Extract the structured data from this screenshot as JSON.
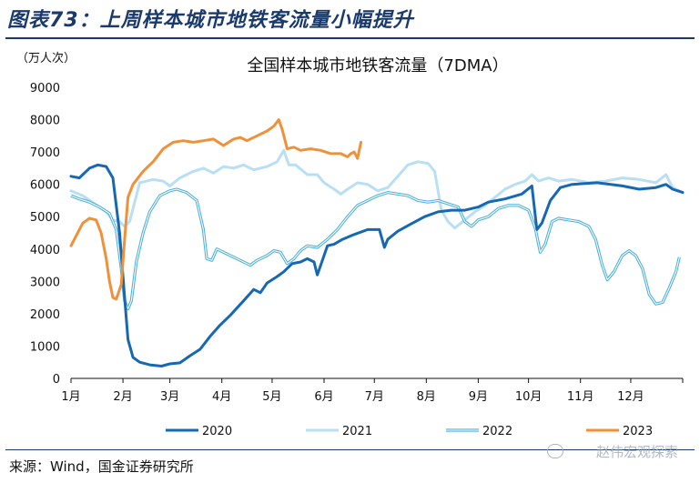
{
  "header": {
    "title": "图表73：上周样本城市地铁客流量小幅提升"
  },
  "footer": {
    "source": "来源：Wind，国金证券研究所",
    "watermark": "赵伟宏观探索"
  },
  "colors": {
    "title": "#1a3a6b",
    "s2020": "#1668b4",
    "s2021": "#b8dff3",
    "s2022": "#4ab0e0",
    "s2023": "#f0913a"
  },
  "chart_data": {
    "type": "line",
    "title": "全国样本城市地铁客流量（7DMA）",
    "ylabel": "（万人次）",
    "xlabel": "",
    "ylim": [
      0,
      9000
    ],
    "yticks": [
      0,
      1000,
      2000,
      3000,
      4000,
      5000,
      6000,
      7000,
      8000,
      9000
    ],
    "x_unit": "day of year",
    "xlim": [
      1,
      366
    ],
    "xtick_labels": [
      "1月",
      "2月",
      "3月",
      "4月",
      "5月",
      "6月",
      "7月",
      "8月",
      "9月",
      "10月",
      "11月",
      "12月"
    ],
    "xtick_days": [
      1,
      32,
      60,
      91,
      121,
      152,
      182,
      213,
      244,
      274,
      305,
      335
    ],
    "legend_position": "bottom",
    "grid": false,
    "series": [
      {
        "name": "2020",
        "style": "solid-thick",
        "color": "#1668b4",
        "points": [
          [
            1,
            6250
          ],
          [
            6,
            6200
          ],
          [
            12,
            6500
          ],
          [
            17,
            6600
          ],
          [
            22,
            6550
          ],
          [
            26,
            6200
          ],
          [
            30,
            4500
          ],
          [
            33,
            2500
          ],
          [
            35,
            1200
          ],
          [
            38,
            650
          ],
          [
            42,
            500
          ],
          [
            48,
            420
          ],
          [
            55,
            380
          ],
          [
            60,
            450
          ],
          [
            66,
            480
          ],
          [
            72,
            700
          ],
          [
            78,
            900
          ],
          [
            84,
            1300
          ],
          [
            90,
            1650
          ],
          [
            96,
            1950
          ],
          [
            104,
            2400
          ],
          [
            110,
            2750
          ],
          [
            114,
            2650
          ],
          [
            118,
            2950
          ],
          [
            124,
            3150
          ],
          [
            128,
            3300
          ],
          [
            133,
            3550
          ],
          [
            138,
            3600
          ],
          [
            142,
            3700
          ],
          [
            146,
            3600
          ],
          [
            148,
            3200
          ],
          [
            150,
            3500
          ],
          [
            154,
            4100
          ],
          [
            158,
            4150
          ],
          [
            163,
            4300
          ],
          [
            170,
            4450
          ],
          [
            178,
            4600
          ],
          [
            185,
            4600
          ],
          [
            188,
            4050
          ],
          [
            190,
            4300
          ],
          [
            196,
            4550
          ],
          [
            203,
            4750
          ],
          [
            212,
            5000
          ],
          [
            220,
            5150
          ],
          [
            228,
            5200
          ],
          [
            236,
            5200
          ],
          [
            244,
            5300
          ],
          [
            250,
            5450
          ],
          [
            260,
            5550
          ],
          [
            270,
            5700
          ],
          [
            276,
            5950
          ],
          [
            279,
            4600
          ],
          [
            282,
            4800
          ],
          [
            287,
            5500
          ],
          [
            293,
            5900
          ],
          [
            300,
            6000
          ],
          [
            315,
            6050
          ],
          [
            330,
            5950
          ],
          [
            340,
            5850
          ],
          [
            350,
            5900
          ],
          [
            356,
            6000
          ],
          [
            360,
            5850
          ],
          [
            366,
            5750
          ]
        ]
      },
      {
        "name": "2021",
        "style": "solid-thick",
        "color": "#b8dff3",
        "points": [
          [
            1,
            5800
          ],
          [
            8,
            5650
          ],
          [
            15,
            5400
          ],
          [
            22,
            5150
          ],
          [
            26,
            4900
          ],
          [
            30,
            4850
          ],
          [
            33,
            4700
          ],
          [
            36,
            4850
          ],
          [
            42,
            6050
          ],
          [
            50,
            6150
          ],
          [
            56,
            6100
          ],
          [
            60,
            5950
          ],
          [
            66,
            6200
          ],
          [
            74,
            6400
          ],
          [
            80,
            6500
          ],
          [
            86,
            6350
          ],
          [
            92,
            6550
          ],
          [
            98,
            6500
          ],
          [
            104,
            6600
          ],
          [
            110,
            6450
          ],
          [
            118,
            6550
          ],
          [
            124,
            6700
          ],
          [
            128,
            7050
          ],
          [
            131,
            6600
          ],
          [
            135,
            6600
          ],
          [
            142,
            6300
          ],
          [
            148,
            6300
          ],
          [
            152,
            6050
          ],
          [
            158,
            5850
          ],
          [
            162,
            5700
          ],
          [
            166,
            5850
          ],
          [
            172,
            6050
          ],
          [
            178,
            6000
          ],
          [
            184,
            5800
          ],
          [
            190,
            5900
          ],
          [
            196,
            6250
          ],
          [
            202,
            6600
          ],
          [
            208,
            6700
          ],
          [
            214,
            6650
          ],
          [
            218,
            6400
          ],
          [
            222,
            5200
          ],
          [
            226,
            4850
          ],
          [
            230,
            4650
          ],
          [
            236,
            4900
          ],
          [
            242,
            5150
          ],
          [
            248,
            5350
          ],
          [
            254,
            5600
          ],
          [
            260,
            5850
          ],
          [
            266,
            6000
          ],
          [
            272,
            6100
          ],
          [
            276,
            6300
          ],
          [
            280,
            6100
          ],
          [
            286,
            6200
          ],
          [
            292,
            6100
          ],
          [
            300,
            6150
          ],
          [
            310,
            6050
          ],
          [
            320,
            6100
          ],
          [
            330,
            6200
          ],
          [
            340,
            6150
          ],
          [
            350,
            6050
          ],
          [
            356,
            6300
          ],
          [
            360,
            5900
          ],
          [
            364,
            5800
          ]
        ]
      },
      {
        "name": "2022",
        "style": "double-line",
        "color": "#4ab0e0",
        "points": [
          [
            1,
            5650
          ],
          [
            6,
            5550
          ],
          [
            12,
            5450
          ],
          [
            18,
            5300
          ],
          [
            24,
            5100
          ],
          [
            28,
            4600
          ],
          [
            31,
            3400
          ],
          [
            33,
            2400
          ],
          [
            35,
            2150
          ],
          [
            37,
            2400
          ],
          [
            40,
            3600
          ],
          [
            44,
            4500
          ],
          [
            48,
            5150
          ],
          [
            54,
            5650
          ],
          [
            60,
            5800
          ],
          [
            64,
            5850
          ],
          [
            70,
            5750
          ],
          [
            76,
            5500
          ],
          [
            80,
            4600
          ],
          [
            82,
            3700
          ],
          [
            85,
            3650
          ],
          [
            88,
            4000
          ],
          [
            92,
            3900
          ],
          [
            96,
            3800
          ],
          [
            100,
            3700
          ],
          [
            104,
            3600
          ],
          [
            108,
            3500
          ],
          [
            112,
            3650
          ],
          [
            118,
            3800
          ],
          [
            122,
            3950
          ],
          [
            126,
            3900
          ],
          [
            130,
            3550
          ],
          [
            134,
            3700
          ],
          [
            138,
            3950
          ],
          [
            142,
            4100
          ],
          [
            148,
            4050
          ],
          [
            154,
            4300
          ],
          [
            160,
            4600
          ],
          [
            166,
            5000
          ],
          [
            172,
            5350
          ],
          [
            178,
            5500
          ],
          [
            184,
            5650
          ],
          [
            190,
            5750
          ],
          [
            196,
            5700
          ],
          [
            202,
            5650
          ],
          [
            208,
            5500
          ],
          [
            214,
            5450
          ],
          [
            220,
            5500
          ],
          [
            226,
            5400
          ],
          [
            232,
            5300
          ],
          [
            236,
            4850
          ],
          [
            240,
            4700
          ],
          [
            244,
            4900
          ],
          [
            250,
            5000
          ],
          [
            256,
            5250
          ],
          [
            262,
            5350
          ],
          [
            268,
            5350
          ],
          [
            274,
            5200
          ],
          [
            278,
            4650
          ],
          [
            281,
            3900
          ],
          [
            284,
            4150
          ],
          [
            288,
            4850
          ],
          [
            292,
            4950
          ],
          [
            298,
            4900
          ],
          [
            304,
            4850
          ],
          [
            310,
            4700
          ],
          [
            314,
            4300
          ],
          [
            318,
            3500
          ],
          [
            321,
            3050
          ],
          [
            325,
            3300
          ],
          [
            330,
            3800
          ],
          [
            334,
            3950
          ],
          [
            338,
            3800
          ],
          [
            342,
            3400
          ],
          [
            346,
            2600
          ],
          [
            350,
            2300
          ],
          [
            354,
            2350
          ],
          [
            358,
            2800
          ],
          [
            362,
            3300
          ],
          [
            364,
            3750
          ]
        ]
      },
      {
        "name": "2023",
        "style": "solid-thick",
        "color": "#f0913a",
        "points": [
          [
            1,
            4100
          ],
          [
            4,
            4400
          ],
          [
            8,
            4800
          ],
          [
            12,
            4950
          ],
          [
            16,
            4900
          ],
          [
            19,
            4500
          ],
          [
            22,
            3700
          ],
          [
            24,
            3000
          ],
          [
            26,
            2500
          ],
          [
            28,
            2450
          ],
          [
            31,
            2900
          ],
          [
            33,
            4300
          ],
          [
            35,
            5600
          ],
          [
            38,
            6000
          ],
          [
            44,
            6400
          ],
          [
            50,
            6700
          ],
          [
            56,
            7100
          ],
          [
            62,
            7300
          ],
          [
            68,
            7350
          ],
          [
            74,
            7300
          ],
          [
            80,
            7350
          ],
          [
            86,
            7400
          ],
          [
            92,
            7200
          ],
          [
            98,
            7400
          ],
          [
            102,
            7450
          ],
          [
            106,
            7350
          ],
          [
            112,
            7500
          ],
          [
            118,
            7650
          ],
          [
            122,
            7800
          ],
          [
            125,
            8000
          ],
          [
            127,
            7700
          ],
          [
            130,
            7100
          ],
          [
            134,
            7150
          ],
          [
            138,
            7050
          ],
          [
            144,
            7100
          ],
          [
            150,
            7050
          ],
          [
            156,
            6950
          ],
          [
            162,
            6950
          ],
          [
            166,
            6850
          ],
          [
            168,
            6950
          ],
          [
            170,
            7000
          ],
          [
            172,
            6800
          ],
          [
            174,
            7300
          ]
        ]
      }
    ]
  }
}
